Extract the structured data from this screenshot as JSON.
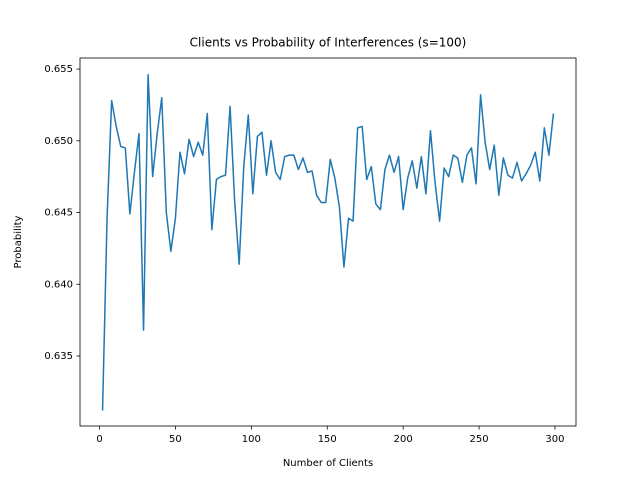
{
  "chart_data": {
    "type": "line",
    "title": "Clients vs Probability of Interferences (s=100)",
    "x_label": "Number of Clients",
    "y_label": "Probability",
    "color": "#1f77b4",
    "grid": false,
    "x": [
      2,
      5,
      8,
      11,
      14,
      17,
      20,
      23,
      26,
      29,
      32,
      35,
      38,
      41,
      44,
      47,
      50,
      53,
      56,
      59,
      62,
      65,
      68,
      71,
      74,
      77,
      80,
      83,
      86,
      89,
      92,
      95,
      98,
      101,
      104,
      107,
      110,
      113,
      116,
      119,
      122,
      125,
      128,
      131,
      134,
      137,
      140,
      143,
      146,
      149,
      152,
      155,
      158,
      161,
      164,
      167,
      170,
      173,
      176,
      179,
      182,
      185,
      188,
      191,
      194,
      197,
      200,
      203,
      206,
      209,
      212,
      215,
      218,
      221,
      224,
      227,
      230,
      233,
      236,
      239,
      242,
      245,
      248,
      251,
      254,
      257,
      260,
      263,
      266,
      269,
      272,
      275,
      278,
      281,
      284,
      287,
      290,
      293,
      296,
      299
    ],
    "values": [
      0.6312,
      0.6447,
      0.6528,
      0.651,
      0.6496,
      0.6495,
      0.6449,
      0.6478,
      0.6505,
      0.6368,
      0.6546,
      0.6475,
      0.6505,
      0.653,
      0.645,
      0.6423,
      0.6446,
      0.6492,
      0.6477,
      0.6501,
      0.6489,
      0.6499,
      0.649,
      0.6519,
      0.6438,
      0.6473,
      0.6475,
      0.6476,
      0.6524,
      0.6458,
      0.6414,
      0.6482,
      0.6518,
      0.6463,
      0.6503,
      0.6506,
      0.6476,
      0.65,
      0.6478,
      0.6473,
      0.6489,
      0.649,
      0.649,
      0.648,
      0.6488,
      0.6478,
      0.6479,
      0.6462,
      0.6457,
      0.6457,
      0.6487,
      0.6474,
      0.6454,
      0.6412,
      0.6446,
      0.6444,
      0.6509,
      0.651,
      0.6473,
      0.6482,
      0.6456,
      0.6452,
      0.648,
      0.649,
      0.6478,
      0.6489,
      0.6452,
      0.6474,
      0.6486,
      0.6467,
      0.6489,
      0.6463,
      0.6507,
      0.6471,
      0.6444,
      0.6481,
      0.6475,
      0.649,
      0.6488,
      0.6471,
      0.649,
      0.6495,
      0.647,
      0.6532,
      0.6499,
      0.648,
      0.6497,
      0.6462,
      0.6488,
      0.6476,
      0.6474,
      0.6485,
      0.6472,
      0.6477,
      0.6483,
      0.6492,
      0.6472,
      0.6509,
      0.649,
      0.6519
    ],
    "xlim": [
      -12.85,
      313.85
    ],
    "ylim": [
      0.63012,
      0.65577
    ],
    "xticks": [
      0,
      50,
      100,
      150,
      200,
      250,
      300
    ],
    "yticks": [
      0.635,
      {
        "value": 0.64,
        "label": "0.640"
      },
      0.645,
      {
        "value": 0.65,
        "label": "0.650"
      },
      0.655
    ]
  }
}
